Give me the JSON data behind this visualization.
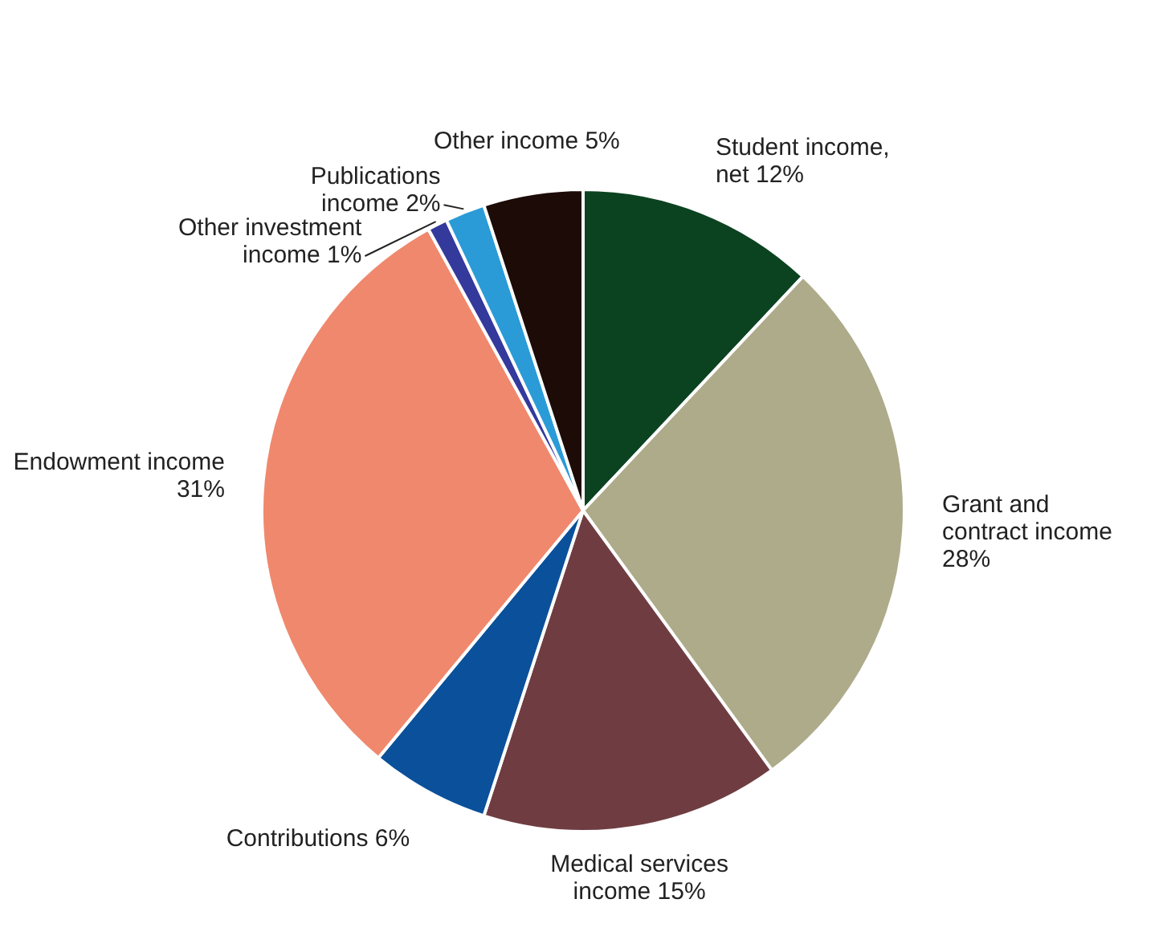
{
  "chart_data": {
    "type": "pie",
    "categories": [
      "Student income, net",
      "Grant and contract income",
      "Medical services income",
      "Contributions",
      "Endowment income",
      "Other investment income",
      "Publications income",
      "Other income"
    ],
    "values": [
      12,
      28,
      15,
      6,
      31,
      1,
      2,
      5
    ],
    "value_labels": [
      "12%",
      "28%",
      "15%",
      "6%",
      "31%",
      "1%",
      "2%",
      "5%"
    ],
    "colors": [
      "#0b4320",
      "#aeab8a",
      "#6f3d41",
      "#0b509a",
      "#f0886d",
      "#34399c",
      "#2b9bd7",
      "#1c0b06"
    ],
    "legend": false
  }
}
